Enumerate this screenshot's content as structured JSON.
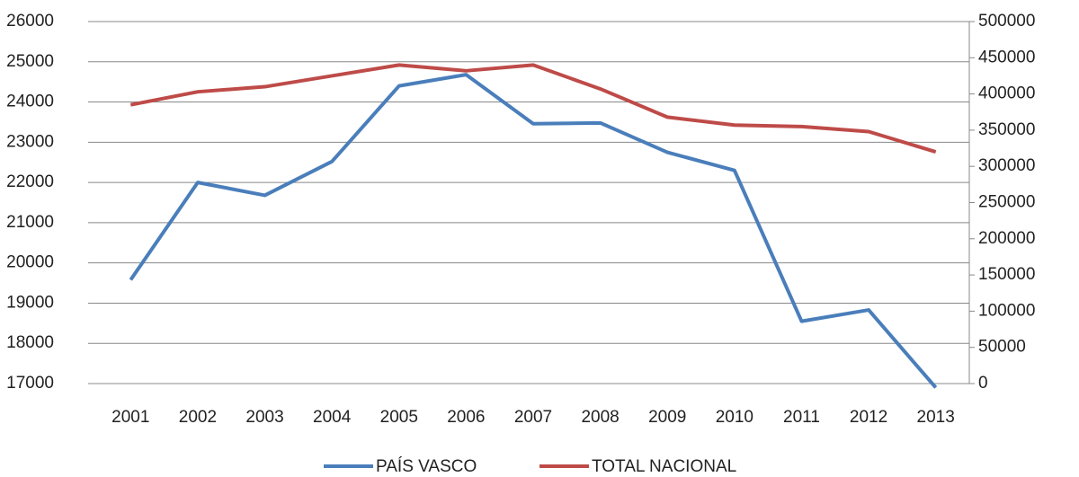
{
  "chart_data": {
    "type": "line",
    "categories": [
      "2001",
      "2002",
      "2003",
      "2004",
      "2005",
      "2006",
      "2007",
      "2008",
      "2009",
      "2010",
      "2011",
      "2012",
      "2013"
    ],
    "series": [
      {
        "name": "PAÍS VASCO",
        "color": "#4a7ebb",
        "values": [
          19580,
          22000,
          21680,
          22520,
          24400,
          24680,
          23460,
          23480,
          22750,
          22300,
          18550,
          18830,
          16900
        ]
      },
      {
        "name": "TOTAL NACIONAL",
        "color": "#be4b48",
        "axis": "y2",
        "values": [
          385000,
          403000,
          410000,
          425000,
          440000,
          432000,
          440000,
          407000,
          368000,
          357000,
          355000,
          348000,
          320000
        ]
      }
    ],
    "ylim": [
      17000,
      26000
    ],
    "yticks": [
      17000,
      18000,
      19000,
      20000,
      21000,
      22000,
      23000,
      24000,
      25000,
      26000
    ],
    "y2lim": [
      0,
      500000
    ],
    "y2ticks": [
      0,
      50000,
      100000,
      150000,
      200000,
      250000,
      300000,
      350000,
      400000,
      450000,
      500000
    ],
    "grid": true,
    "legend": "bottom"
  }
}
